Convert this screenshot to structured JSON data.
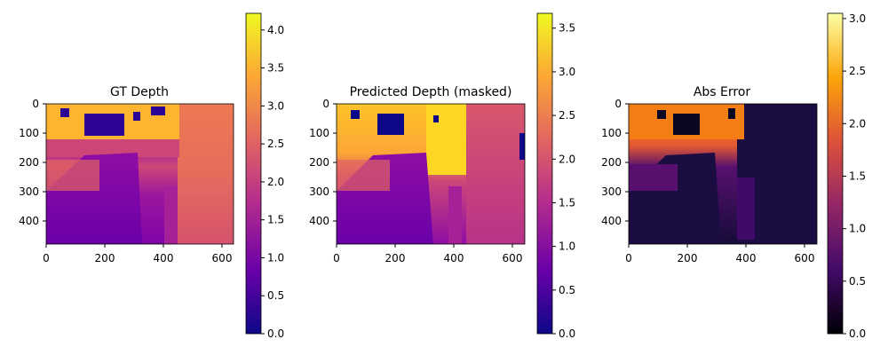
{
  "figure": {
    "panels": [
      {
        "title": "GT Depth",
        "colormap": "plasma",
        "cbar_ticks": [
          "0.0",
          "0.5",
          "1.0",
          "1.5",
          "2.0",
          "2.5",
          "3.0",
          "3.5",
          "4.0"
        ]
      },
      {
        "title": "Predicted Depth (masked)",
        "colormap": "plasma",
        "cbar_ticks": [
          "0.0",
          "0.5",
          "1.0",
          "1.5",
          "2.0",
          "2.5",
          "3.0",
          "3.5"
        ]
      },
      {
        "title": "Abs Error",
        "colormap": "inferno",
        "cbar_ticks": [
          "0.0",
          "0.5",
          "1.0",
          "1.5",
          "2.0",
          "2.5",
          "3.0"
        ]
      }
    ]
  },
  "chart_data": [
    {
      "type": "heatmap",
      "title": "GT Depth",
      "xlim": [
        0,
        640
      ],
      "ylim": [
        480,
        0
      ],
      "xticks": [
        "0",
        "200",
        "400",
        "600"
      ],
      "yticks": [
        "0",
        "100",
        "200",
        "300",
        "400"
      ],
      "colorbar": {
        "colormap": "plasma",
        "range": [
          0,
          4.22
        ],
        "ticks": [
          "0.0",
          "0.5",
          "1.0",
          "1.5",
          "2.0",
          "2.5",
          "3.0",
          "3.5",
          "4.0"
        ]
      }
    },
    {
      "type": "heatmap",
      "title": "Predicted Depth (masked)",
      "xlim": [
        0,
        640
      ],
      "ylim": [
        480,
        0
      ],
      "xticks": [
        "0",
        "200",
        "400",
        "600"
      ],
      "yticks": [
        "0",
        "100",
        "200",
        "300",
        "400"
      ],
      "colorbar": {
        "colormap": "plasma",
        "range": [
          0,
          3.67
        ],
        "ticks": [
          "0.0",
          "0.5",
          "1.0",
          "1.5",
          "2.0",
          "2.5",
          "3.0",
          "3.5"
        ]
      }
    },
    {
      "type": "heatmap",
      "title": "Abs Error",
      "xlim": [
        0,
        640
      ],
      "ylim": [
        480,
        0
      ],
      "xticks": [
        "0",
        "200",
        "400",
        "600"
      ],
      "yticks": [
        "0",
        "100",
        "200",
        "300",
        "400"
      ],
      "colorbar": {
        "colormap": "inferno",
        "range": [
          0,
          3.05
        ],
        "ticks": [
          "0.0",
          "0.5",
          "1.0",
          "1.5",
          "2.0",
          "2.5",
          "3.0"
        ]
      }
    }
  ]
}
